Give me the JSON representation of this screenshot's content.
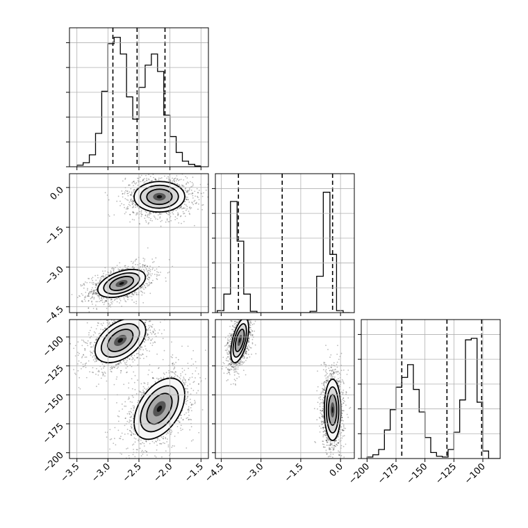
{
  "colors": {
    "ink": "#000000",
    "grid": "#b0b0b0",
    "background": "#ffffff"
  },
  "chart_data": {
    "type": "corner",
    "grid": true,
    "parameters": [
      {
        "range": [
          -3.62,
          -1.38
        ],
        "ticks": [
          -3.5,
          -3.0,
          -2.5,
          -2.0,
          -1.5
        ],
        "tick_labels": [
          "−3.5",
          "−3.0",
          "−2.5",
          "−2.0",
          "−1.5"
        ]
      },
      {
        "range": [
          -4.72,
          0.52
        ],
        "ticks": [
          -4.5,
          -3.0,
          -1.5,
          0.0
        ],
        "tick_labels": [
          "−4.5",
          "−3.0",
          "−1.5",
          "0.0"
        ]
      },
      {
        "range": [
          -205,
          -85
        ],
        "ticks": [
          -200,
          -175,
          -150,
          -125,
          -100
        ],
        "tick_labels": [
          "−200",
          "−175",
          "−150",
          "−125",
          "−100"
        ]
      }
    ],
    "histograms": [
      {
        "param": 0,
        "bin_edges": [
          -3.5,
          -3.4,
          -3.3,
          -3.2,
          -3.1,
          -3.0,
          -2.9,
          -2.8,
          -2.7,
          -2.6,
          -2.5,
          -2.4,
          -2.3,
          -2.2,
          -2.1,
          -2.0,
          -1.9,
          -1.8,
          -1.7,
          -1.6,
          -1.5
        ],
        "counts": [
          2,
          5,
          15,
          42,
          95,
          155,
          163,
          142,
          88,
          60,
          100,
          128,
          142,
          120,
          65,
          38,
          18,
          7,
          3,
          1
        ],
        "ymax": 175,
        "quantiles": [
          -2.92,
          -2.53,
          -2.08
        ]
      },
      {
        "param": 1,
        "bin_edges": [
          -4.65,
          -4.4,
          -4.15,
          -3.9,
          -3.65,
          -3.4,
          -3.15,
          -2.9,
          -2.65,
          -2.4,
          -2.15,
          -1.9,
          -1.65,
          -1.4,
          -1.15,
          -0.9,
          -0.65,
          -0.4,
          -0.15,
          0.1,
          0.35
        ],
        "counts": [
          3,
          28,
          168,
          108,
          28,
          2,
          0,
          0,
          0,
          0,
          0,
          0,
          0,
          0,
          2,
          55,
          182,
          88,
          3,
          0
        ],
        "ymax": 210,
        "quantiles": [
          -3.85,
          -2.2,
          -0.3
        ]
      },
      {
        "param": 2,
        "bin_edges": [
          -200,
          -195,
          -190,
          -185,
          -180,
          -175,
          -170,
          -165,
          -160,
          -155,
          -150,
          -145,
          -140,
          -135,
          -130,
          -125,
          -120,
          -115,
          -110,
          -105,
          -100,
          -95,
          -90,
          -85
        ],
        "counts": [
          2,
          5,
          12,
          38,
          65,
          95,
          108,
          125,
          92,
          62,
          28,
          8,
          3,
          2,
          12,
          35,
          78,
          158,
          160,
          75,
          10,
          0,
          0
        ],
        "ymax": 185,
        "quantiles": [
          -170,
          -131,
          -101
        ]
      }
    ],
    "pairs": [
      {
        "x_param": 0,
        "y_param": 1,
        "modes": [
          {
            "cx": -2.78,
            "cy": -3.62,
            "sx": 0.16,
            "sy": 0.22,
            "tilt": 0.45,
            "n": 1300
          },
          {
            "cx": -2.17,
            "cy": -0.35,
            "sx": 0.17,
            "sy": 0.24,
            "tilt": 0.02,
            "n": 1300
          }
        ]
      },
      {
        "x_param": 0,
        "y_param": 2,
        "modes": [
          {
            "cx": -2.8,
            "cy": -103,
            "sx": 0.17,
            "sy": 8.0,
            "tilt": 0.45,
            "n": 1300
          },
          {
            "cx": -2.17,
            "cy": -162,
            "sx": 0.17,
            "sy": 11.0,
            "tilt": 0.45,
            "n": 1300
          }
        ]
      },
      {
        "x_param": 1,
        "y_param": 2,
        "modes": [
          {
            "cx": -3.8,
            "cy": -103,
            "sx": 0.14,
            "sy": 8.0,
            "tilt": 0.55,
            "n": 1300
          },
          {
            "cx": -0.3,
            "cy": -163,
            "sx": 0.13,
            "sy": 11.0,
            "tilt": 0.0,
            "n": 1300
          }
        ]
      }
    ]
  }
}
